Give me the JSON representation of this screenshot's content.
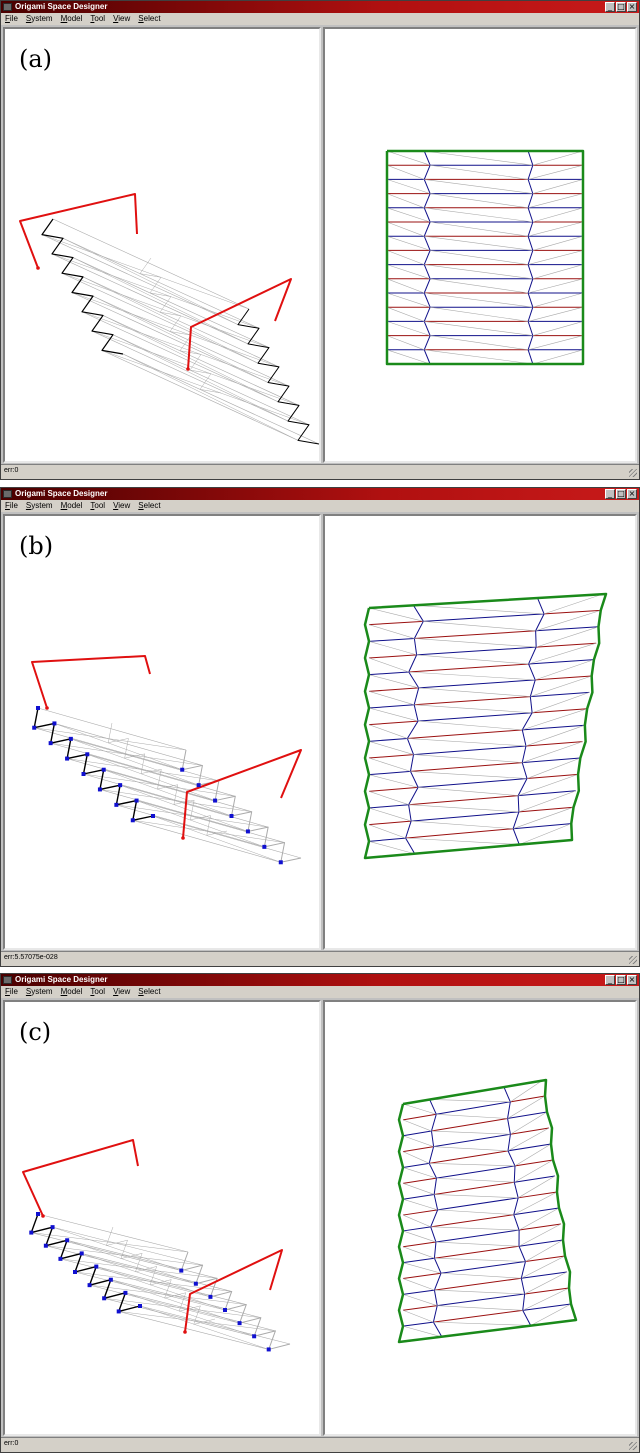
{
  "windows": [
    {
      "title": "Origami Space Designer",
      "panel_label": "(a)",
      "status": "err:0",
      "menu": [
        {
          "label": "File",
          "accel": "F"
        },
        {
          "label": "System",
          "accel": "S"
        },
        {
          "label": "Model",
          "accel": "M"
        },
        {
          "label": "Tool",
          "accel": "T"
        },
        {
          "label": "View",
          "accel": "V"
        },
        {
          "label": "Select",
          "accel": "S"
        }
      ]
    },
    {
      "title": "Origami Space Designer",
      "panel_label": "(b)",
      "status": "err:5.57075e-028",
      "menu": [
        {
          "label": "File",
          "accel": "F"
        },
        {
          "label": "System",
          "accel": "S"
        },
        {
          "label": "Model",
          "accel": "M"
        },
        {
          "label": "Tool",
          "accel": "T"
        },
        {
          "label": "View",
          "accel": "V"
        },
        {
          "label": "Select",
          "accel": "S"
        }
      ]
    },
    {
      "title": "Origami Space Designer",
      "panel_label": "(c)",
      "status": "err:0",
      "menu": [
        {
          "label": "File",
          "accel": "F"
        },
        {
          "label": "System",
          "accel": "S"
        },
        {
          "label": "Model",
          "accel": "M"
        },
        {
          "label": "Tool",
          "accel": "T"
        },
        {
          "label": "View",
          "accel": "V"
        },
        {
          "label": "Select",
          "accel": "S"
        }
      ]
    }
  ],
  "window_buttons": [
    "_",
    "□",
    "×"
  ],
  "colors": {
    "title_gradient_start": "#4a0000",
    "title_gradient_end": "#c81a1a",
    "boundary": "#1a8a1a",
    "mountain": "#9a1010",
    "valley": "#10108a",
    "flat": "#aaaaaa",
    "constraint": "#e01010",
    "vertex": "#1010d0",
    "edge_3d": "#000000"
  },
  "icons": {
    "app": "origami-app-icon",
    "minimize": "minimize-icon",
    "maximize": "maximize-icon",
    "close": "close-icon"
  }
}
